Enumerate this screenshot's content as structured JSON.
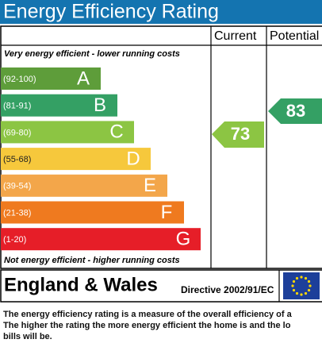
{
  "header": {
    "title": "Energy Efficiency Rating"
  },
  "columns": {
    "current": "Current",
    "potential": "Potential"
  },
  "top_note": "Very energy efficient - lower running costs",
  "bands": [
    {
      "range": "(92-100)",
      "letter": "A",
      "color": "#5e9d3a"
    },
    {
      "range": "(81-91)",
      "letter": "B",
      "color": "#34a064"
    },
    {
      "range": "(69-80)",
      "letter": "C",
      "color": "#8cc543"
    },
    {
      "range": "(55-68)",
      "letter": "D",
      "color": "#f6c83c"
    },
    {
      "range": "(39-54)",
      "letter": "E",
      "color": "#f3a64a"
    },
    {
      "range": "(21-38)",
      "letter": "F",
      "color": "#ef7a1f"
    },
    {
      "range": "(1-20)",
      "letter": "G",
      "color": "#e61e28"
    }
  ],
  "bottom_note": "Not energy efficient - higher running costs",
  "current": {
    "value": 73,
    "color": "#8cc543"
  },
  "potential": {
    "value": 83,
    "color": "#34a064"
  },
  "footer": {
    "region": "England & Wales",
    "directive": "Directive 2002/91/EC"
  },
  "description": [
    "The energy efficiency rating is a measure of the overall efficiency of a",
    "The higher the rating the more energy efficient the home is and the lo",
    "bills will be."
  ]
}
